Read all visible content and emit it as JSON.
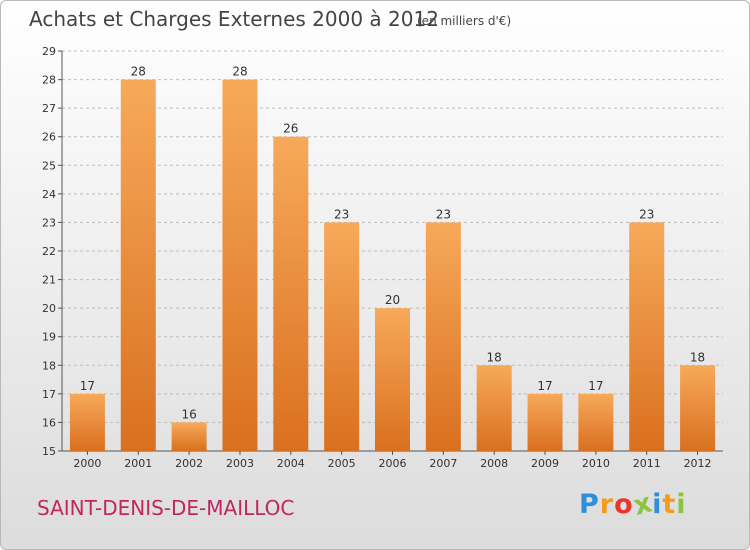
{
  "header": {
    "title": "Achats et Charges Externes 2000 à 2012",
    "subtitle": "(en milliers d'€)"
  },
  "footer": {
    "commune": "SAINT-DENIS-DE-MAILLOC",
    "logo_letters": [
      "P",
      "r",
      "o",
      "x",
      "i",
      "t",
      "i"
    ],
    "logo_colors": [
      "#2e8fd6",
      "#f29b1f",
      "#e8362f",
      "#8cc43f",
      "#2e8fd6",
      "#f29b1f",
      "#8cc43f"
    ]
  },
  "chart_data": {
    "type": "bar",
    "title": "Achats et Charges Externes 2000 à 2012",
    "subtitle": "(en milliers d'€)",
    "categories": [
      "2000",
      "2001",
      "2002",
      "2003",
      "2004",
      "2005",
      "2006",
      "2007",
      "2008",
      "2009",
      "2010",
      "2011",
      "2012"
    ],
    "values": [
      17,
      28,
      16,
      28,
      26,
      23,
      20,
      23,
      18,
      17,
      17,
      23,
      18
    ],
    "ylim": [
      15,
      29
    ],
    "yticks": [
      15,
      16,
      17,
      18,
      19,
      20,
      21,
      22,
      23,
      24,
      25,
      26,
      27,
      28,
      29
    ],
    "grid": true,
    "colors": {
      "bar_top": "#f7a95a",
      "bar_bottom": "#d9701f",
      "grid": "#bdbdbd",
      "commune": "#c0265f"
    }
  }
}
